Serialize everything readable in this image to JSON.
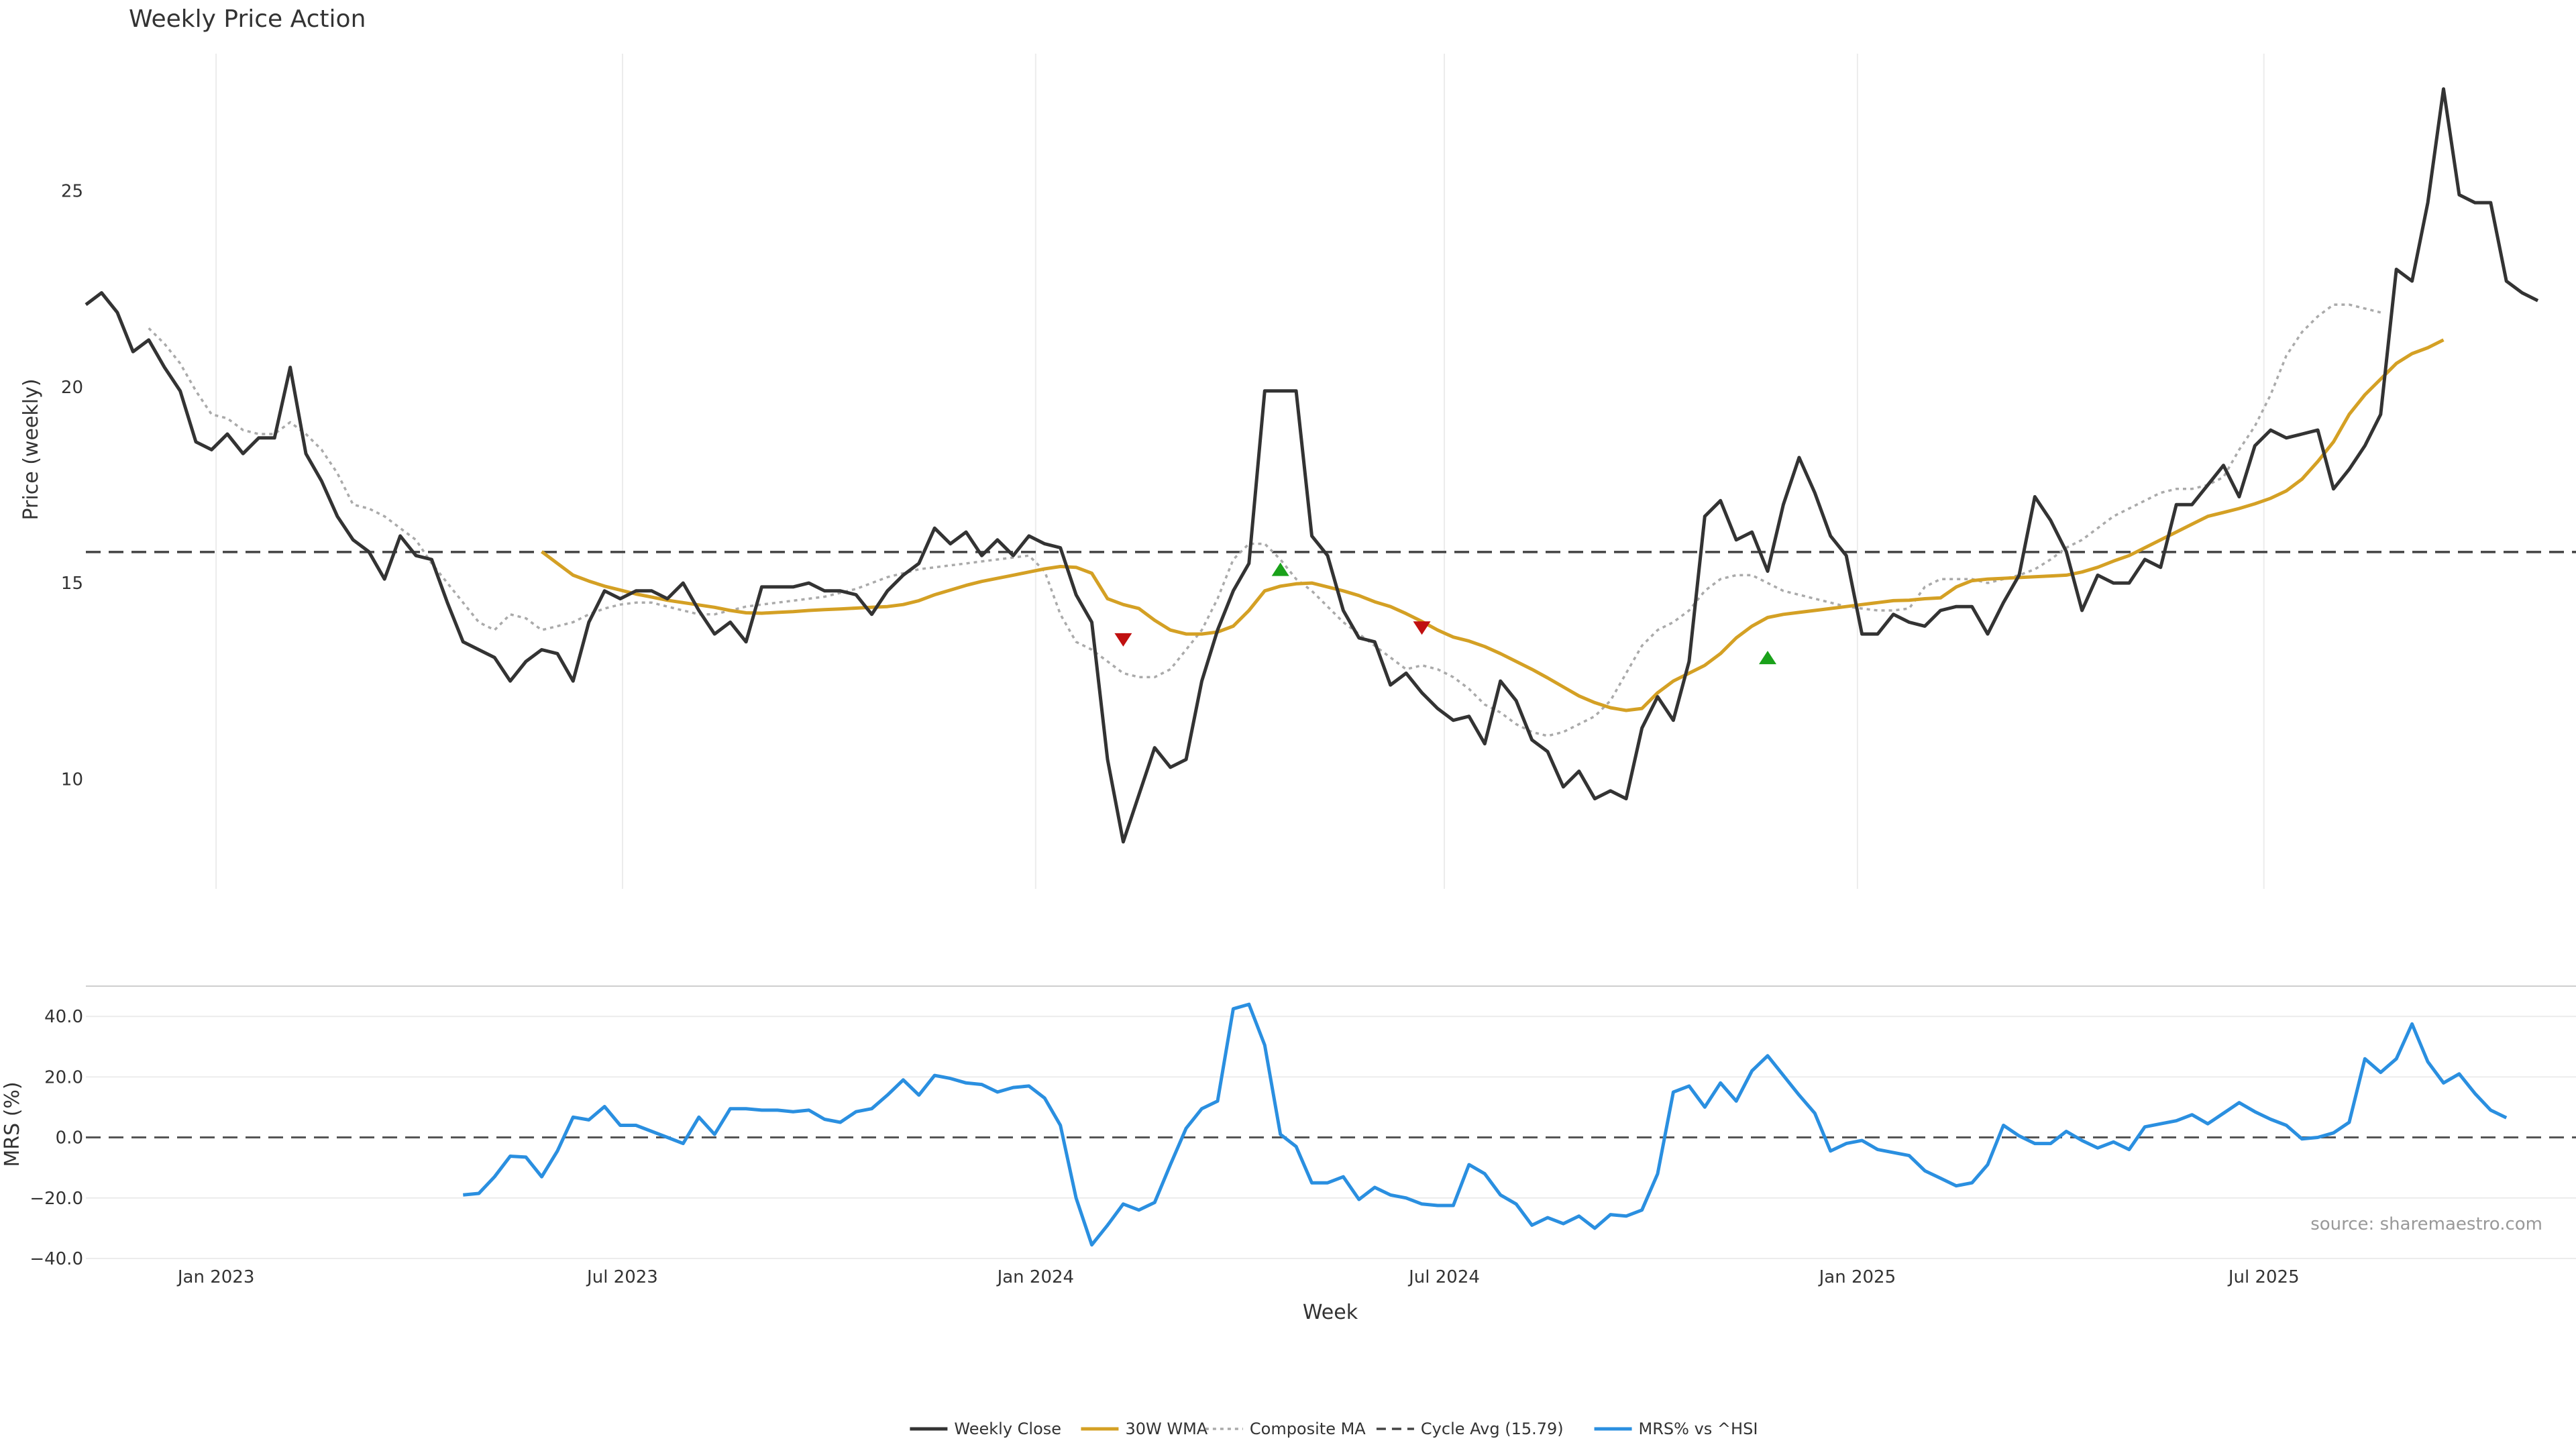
{
  "chart_data": [
    {
      "type": "line",
      "title": "Weekly Price Action",
      "ylabel": "Price (weekly)",
      "ylim": [
        7.2,
        28.5
      ],
      "yticks": [
        10,
        15,
        20,
        25
      ],
      "x_start": "2022-11-04",
      "x_step_days": 7,
      "series": [
        {
          "name": "Weekly Close",
          "color": "#333333",
          "style": "solid",
          "values": [
            22.1,
            22.4,
            21.9,
            20.9,
            21.2,
            20.5,
            19.9,
            18.6,
            18.4,
            18.8,
            18.3,
            18.7,
            18.7,
            20.5,
            18.3,
            17.6,
            16.7,
            16.1,
            15.8,
            15.1,
            16.2,
            15.7,
            15.6,
            14.5,
            13.5,
            13.3,
            13.1,
            12.5,
            13.0,
            13.3,
            13.2,
            12.5,
            14.0,
            14.8,
            14.6,
            14.8,
            14.8,
            14.6,
            15.0,
            14.3,
            13.7,
            14.0,
            13.5,
            14.9,
            14.9,
            14.9,
            15.0,
            14.8,
            14.8,
            14.7,
            14.2,
            14.8,
            15.2,
            15.5,
            16.4,
            16.0,
            16.3,
            15.7,
            16.1,
            15.7,
            16.2,
            16.0,
            15.9,
            14.7,
            14.0,
            10.5,
            8.4,
            9.6,
            10.8,
            10.3,
            10.5,
            12.5,
            13.8,
            14.8,
            15.5,
            19.9,
            19.9,
            19.9,
            16.2,
            15.7,
            14.3,
            13.6,
            13.5,
            12.4,
            12.7,
            12.2,
            11.8,
            11.5,
            11.6,
            10.9,
            12.5,
            12.0,
            11.0,
            10.7,
            9.8,
            10.2,
            9.5,
            9.7,
            9.5,
            11.3,
            12.1,
            11.5,
            13.0,
            16.7,
            17.1,
            16.1,
            16.3,
            15.3,
            17.0,
            18.2,
            17.3,
            16.2,
            15.7,
            13.7,
            13.7,
            14.2,
            14.0,
            13.9,
            14.3,
            14.4,
            14.4,
            13.7,
            14.5,
            15.2,
            17.2,
            16.6,
            15.8,
            14.3,
            15.2,
            15.0,
            15.0,
            15.6,
            15.4,
            17.0,
            17.0,
            17.5,
            18.0,
            17.2,
            18.5,
            18.9,
            18.7,
            18.8,
            18.9,
            17.4,
            17.9,
            18.5,
            19.3,
            23.0,
            22.7,
            24.7,
            27.6,
            24.9,
            24.7,
            24.7,
            22.7,
            22.4,
            22.2
          ]
        },
        {
          "name": "30W WMA",
          "color": "#d4a024",
          "style": "solid",
          "start_index": 29,
          "values": [
            15.8,
            15.5,
            15.2,
            15.05,
            14.92,
            14.82,
            14.72,
            14.64,
            14.56,
            14.5,
            14.44,
            14.38,
            14.3,
            14.24,
            14.23,
            14.25,
            14.27,
            14.3,
            14.32,
            14.34,
            14.36,
            14.38,
            14.4,
            14.45,
            14.55,
            14.7,
            14.82,
            14.94,
            15.04,
            15.12,
            15.2,
            15.28,
            15.36,
            15.42,
            15.4,
            15.25,
            14.6,
            14.45,
            14.35,
            14.05,
            13.8,
            13.7,
            13.7,
            13.75,
            13.9,
            14.3,
            14.8,
            14.92,
            14.98,
            15.0,
            14.9,
            14.8,
            14.68,
            14.52,
            14.4,
            14.22,
            14.02,
            13.8,
            13.62,
            13.52,
            13.38,
            13.2,
            13.0,
            12.8,
            12.58,
            12.35,
            12.12,
            11.95,
            11.82,
            11.75,
            11.8,
            12.2,
            12.5,
            12.7,
            12.9,
            13.2,
            13.6,
            13.9,
            14.12,
            14.2,
            14.25,
            14.3,
            14.35,
            14.4,
            14.45,
            14.5,
            14.55,
            14.56,
            14.6,
            14.62,
            14.9,
            15.06,
            15.1,
            15.12,
            15.14,
            15.16,
            15.18,
            15.2,
            15.28,
            15.4,
            15.56,
            15.7,
            15.9,
            16.1,
            16.3,
            16.5,
            16.7,
            16.8,
            16.9,
            17.02,
            17.16,
            17.35,
            17.65,
            18.1,
            18.6,
            19.3,
            19.8,
            20.2,
            20.6,
            20.85,
            21.0,
            21.2
          ]
        },
        {
          "name": "Composite MA",
          "color": "#aaaaaa",
          "style": "dotted",
          "start_index": 4,
          "values": [
            21.5,
            21.1,
            20.6,
            19.9,
            19.3,
            19.2,
            18.9,
            18.8,
            18.8,
            19.1,
            18.8,
            18.4,
            17.8,
            17.0,
            16.9,
            16.7,
            16.4,
            16.1,
            15.5,
            15.0,
            14.5,
            14.0,
            13.8,
            14.2,
            14.1,
            13.8,
            13.9,
            14.0,
            14.2,
            14.35,
            14.45,
            14.5,
            14.5,
            14.4,
            14.3,
            14.2,
            14.2,
            14.3,
            14.4,
            14.45,
            14.5,
            14.55,
            14.6,
            14.65,
            14.75,
            14.85,
            15.0,
            15.15,
            15.25,
            15.35,
            15.4,
            15.45,
            15.5,
            15.55,
            15.6,
            15.65,
            15.7,
            15.3,
            14.2,
            13.5,
            13.3,
            13.0,
            12.7,
            12.6,
            12.6,
            12.8,
            13.3,
            13.8,
            14.6,
            15.6,
            16.0,
            16.0,
            15.6,
            15.1,
            14.8,
            14.4,
            14.0,
            13.7,
            13.4,
            13.1,
            12.8,
            12.9,
            12.8,
            12.6,
            12.3,
            11.9,
            11.7,
            11.4,
            11.2,
            11.1,
            11.2,
            11.4,
            11.6,
            12.0,
            12.7,
            13.4,
            13.8,
            14.0,
            14.3,
            14.8,
            15.1,
            15.2,
            15.2,
            15.0,
            14.8,
            14.7,
            14.6,
            14.5,
            14.4,
            14.35,
            14.3,
            14.3,
            14.35,
            14.9,
            15.1,
            15.1,
            15.1,
            15.0,
            15.1,
            15.2,
            15.35,
            15.6,
            15.9,
            16.1,
            16.4,
            16.7,
            16.9,
            17.1,
            17.3,
            17.4,
            17.4,
            17.5,
            17.7,
            18.4,
            19.0,
            19.8,
            20.8,
            21.4,
            21.8,
            22.1,
            22.1,
            22.0,
            21.9
          ]
        },
        {
          "name": "Cycle Avg (15.79)",
          "color": "#444444",
          "style": "dashed",
          "constant": 15.79
        }
      ],
      "markers": [
        {
          "type": "sell",
          "index": 66,
          "value": 13.55,
          "color": "#c01010"
        },
        {
          "type": "buy",
          "index": 76,
          "value": 15.35,
          "color": "#1aa11a"
        },
        {
          "type": "sell",
          "index": 85,
          "value": 13.85,
          "color": "#c01010"
        },
        {
          "type": "buy",
          "index": 107,
          "value": 13.1,
          "color": "#1aa11a"
        }
      ]
    },
    {
      "type": "line",
      "xlabel": "Week",
      "ylabel": "MRS (%)",
      "ylim": [
        -42,
        50
      ],
      "yticks": [
        -40,
        -20,
        0,
        20,
        40
      ],
      "ytick_labels": [
        "−40.0",
        "−20.0",
        "0.0",
        "20.0",
        "40.0"
      ],
      "x_ticks": [
        {
          "label": "Jan 2023",
          "date": "2023-01-01"
        },
        {
          "label": "Jul 2023",
          "date": "2023-07-01"
        },
        {
          "label": "Jan 2024",
          "date": "2024-01-01"
        },
        {
          "label": "Jul 2024",
          "date": "2024-07-01"
        },
        {
          "label": "Jan 2025",
          "date": "2025-01-01"
        },
        {
          "label": "Jul 2025",
          "date": "2025-07-01"
        }
      ],
      "series": [
        {
          "name": "MRS% vs ^HSI",
          "color": "#2a8fe0",
          "style": "solid",
          "start_index": 24,
          "values": [
            -19.0,
            -18.5,
            -13.0,
            -6.2,
            -6.5,
            -13.0,
            -4.5,
            6.7,
            5.8,
            10.2,
            4.0,
            4.0,
            2.0,
            0.0,
            -2.0,
            6.7,
            1.0,
            9.5,
            9.5,
            9.0,
            9.0,
            8.5,
            9.0,
            6.0,
            5.0,
            8.5,
            9.5,
            14.0,
            19.0,
            14.0,
            20.5,
            19.5,
            18.0,
            17.5,
            15.0,
            16.5,
            17.0,
            13.0,
            4.0,
            -20.0,
            -35.5,
            -29.0,
            -22.0,
            -24.0,
            -21.5,
            -9.0,
            3.0,
            9.5,
            12.0,
            42.5,
            44.0,
            30.5,
            1.0,
            -3.0,
            -15.0,
            -15.0,
            -13.0,
            -20.5,
            -16.5,
            -19.0,
            -20.0,
            -22.0,
            -22.5,
            -22.5,
            -9.0,
            -12.0,
            -19.0,
            -22.0,
            -29.0,
            -26.5,
            -28.5,
            -26.0,
            -30.0,
            -25.5,
            -26.0,
            -24.0,
            -12.0,
            15.0,
            17.0,
            10.0,
            18.0,
            12.0,
            22.0,
            27.0,
            20.5,
            14.0,
            8.0,
            -4.5,
            -2.0,
            -1.0,
            -4.0,
            -5.0,
            -6.0,
            -11.0,
            -13.5,
            -16.0,
            -15.0,
            -9.0,
            4.0,
            0.5,
            -2.0,
            -2.0,
            2.0,
            -1.0,
            -3.5,
            -1.5,
            -4.0,
            3.5,
            4.5,
            5.5,
            7.5,
            4.5,
            8.0,
            11.5,
            8.5,
            6.0,
            4.0,
            -0.5,
            0.0,
            1.5,
            5.0,
            26.0,
            21.5,
            26.0,
            37.5,
            25.0,
            18.0,
            21.0,
            14.5,
            9.0,
            6.5
          ]
        }
      ],
      "zero_line": 0,
      "source": "source: sharemaestro.com"
    }
  ],
  "legend": [
    {
      "label": "Weekly Close",
      "color": "#333333",
      "style": "solid"
    },
    {
      "label": "30W WMA",
      "color": "#d4a024",
      "style": "solid"
    },
    {
      "label": "Composite MA",
      "color": "#aaaaaa",
      "style": "dotted"
    },
    {
      "label": "Cycle Avg (15.79)",
      "color": "#444444",
      "style": "dashed"
    },
    {
      "label": "MRS% vs ^HSI",
      "color": "#2a8fe0",
      "style": "solid"
    }
  ]
}
